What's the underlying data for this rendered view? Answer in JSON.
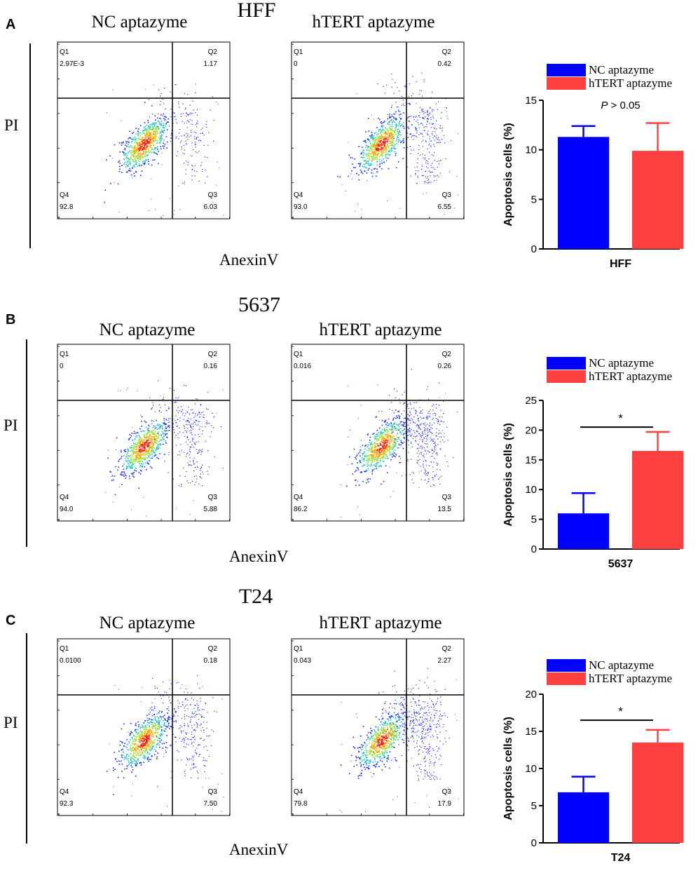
{
  "colors": {
    "nc": "#0000ff",
    "htert": "#ff4040",
    "axis": "#000000"
  },
  "panels": [
    {
      "letter": "A",
      "title": "HFF",
      "ylabel": "PI",
      "xlabel": "AnexinV",
      "plots": [
        {
          "title": "NC aptazyme",
          "q1": "Q1",
          "q1v": "2.97E-3",
          "q2": "Q2",
          "q2v": "1.17",
          "q3": "Q3",
          "q3v": "6.03",
          "q4": "Q4",
          "q4v": "92.8"
        },
        {
          "title": "hTERT aptazyme",
          "q1": "Q1",
          "q1v": "0",
          "q2": "Q2",
          "q2v": "0.42",
          "q3": "Q3",
          "q3v": "6.55",
          "q4": "Q4",
          "q4v": "93.0"
        }
      ]
    },
    {
      "letter": "B",
      "title": "5637",
      "ylabel": "PI",
      "xlabel": "AnexinV",
      "plots": [
        {
          "title": "NC aptazyme",
          "q1": "Q1",
          "q1v": "0",
          "q2": "Q2",
          "q2v": "0.16",
          "q3": "Q3",
          "q3v": "5.88",
          "q4": "Q4",
          "q4v": "94.0"
        },
        {
          "title": "hTERT aptazyme",
          "q1": "Q1",
          "q1v": "0.016",
          "q2": "Q2",
          "q2v": "0.26",
          "q3": "Q3",
          "q3v": "13.5",
          "q4": "Q4",
          "q4v": "86.2"
        }
      ]
    },
    {
      "letter": "C",
      "title": "T24",
      "ylabel": "PI",
      "xlabel": "AnexinV",
      "plots": [
        {
          "title": "NC aptazyme",
          "q1": "Q1",
          "q1v": "0.0100",
          "q2": "Q2",
          "q2v": "0.18",
          "q3": "Q3",
          "q3v": "7.50",
          "q4": "Q4",
          "q4v": "92.3"
        },
        {
          "title": "hTERT aptazyme",
          "q1": "Q1",
          "q1v": "0.043",
          "q2": "Q2",
          "q2v": "2.27",
          "q3": "Q3",
          "q3v": "17.9",
          "q4": "Q4",
          "q4v": "79.8"
        }
      ]
    }
  ],
  "legend": {
    "nc": "NC aptazyme",
    "htert": "hTERT aptazyme"
  },
  "chart_data": [
    {
      "type": "bar",
      "xlabel": "HFF",
      "ylabel": "Apoptosis cells (%)",
      "ylim": [
        0,
        15
      ],
      "yticks": [
        0,
        5,
        10,
        15
      ],
      "categories": [
        "NC aptazyme",
        "hTERT aptazyme"
      ],
      "values": [
        11.3,
        9.9
      ],
      "errors": [
        1.1,
        2.8
      ],
      "annotation": {
        "prefix": "P",
        "text": " > 0.05",
        "bracket": false
      }
    },
    {
      "type": "bar",
      "xlabel": "5637",
      "ylabel": "Apoptosis cells (%)",
      "ylim": [
        0,
        25
      ],
      "yticks": [
        0,
        5,
        10,
        15,
        20,
        25
      ],
      "categories": [
        "NC aptazyme",
        "hTERT aptazyme"
      ],
      "values": [
        6.0,
        16.5
      ],
      "errors": [
        3.4,
        3.2
      ],
      "annotation": {
        "prefix": "",
        "text": "*",
        "bracket": true,
        "level": 20.5
      }
    },
    {
      "type": "bar",
      "xlabel": "T24",
      "ylabel": "Apoptosis cells (%)",
      "ylim": [
        0,
        20
      ],
      "yticks": [
        0,
        5,
        10,
        15,
        20
      ],
      "categories": [
        "NC aptazyme",
        "hTERT aptazyme"
      ],
      "values": [
        6.8,
        13.5
      ],
      "errors": [
        2.1,
        1.7
      ],
      "annotation": {
        "prefix": "",
        "text": "*",
        "bracket": true,
        "level": 16.5
      }
    }
  ]
}
